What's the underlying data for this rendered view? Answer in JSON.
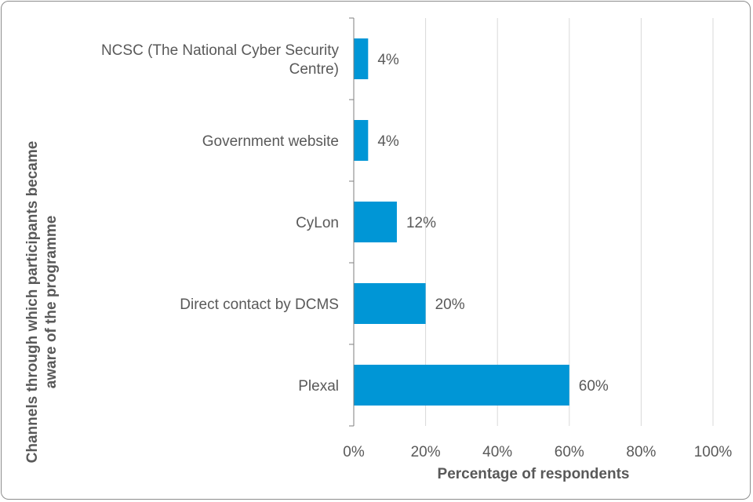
{
  "chart_data": {
    "type": "bar",
    "orientation": "horizontal",
    "categories": [
      [
        "NCSC (The National Cyber Security",
        "Centre)"
      ],
      [
        "Government website"
      ],
      [
        "CyLon"
      ],
      [
        "Direct contact by DCMS"
      ],
      [
        "Plexal"
      ]
    ],
    "values": [
      4,
      4,
      12,
      20,
      60
    ],
    "data_labels": [
      "4%",
      "4%",
      "12%",
      "20%",
      "60%"
    ],
    "xlabel": "Percentage of respondents",
    "ylabel": [
      "Channels through which participants became",
      "aware of the programme"
    ],
    "xlim": [
      0,
      100
    ],
    "xticks": [
      0,
      20,
      40,
      60,
      80,
      100
    ],
    "xtick_labels": [
      "0%",
      "20%",
      "40%",
      "60%",
      "80%",
      "100%"
    ],
    "grid": "vertical",
    "bar_color": "#0096d6",
    "grid_color": "#d9d9d9",
    "axis_color": "#7f7f7f",
    "text_color": "#595959"
  }
}
